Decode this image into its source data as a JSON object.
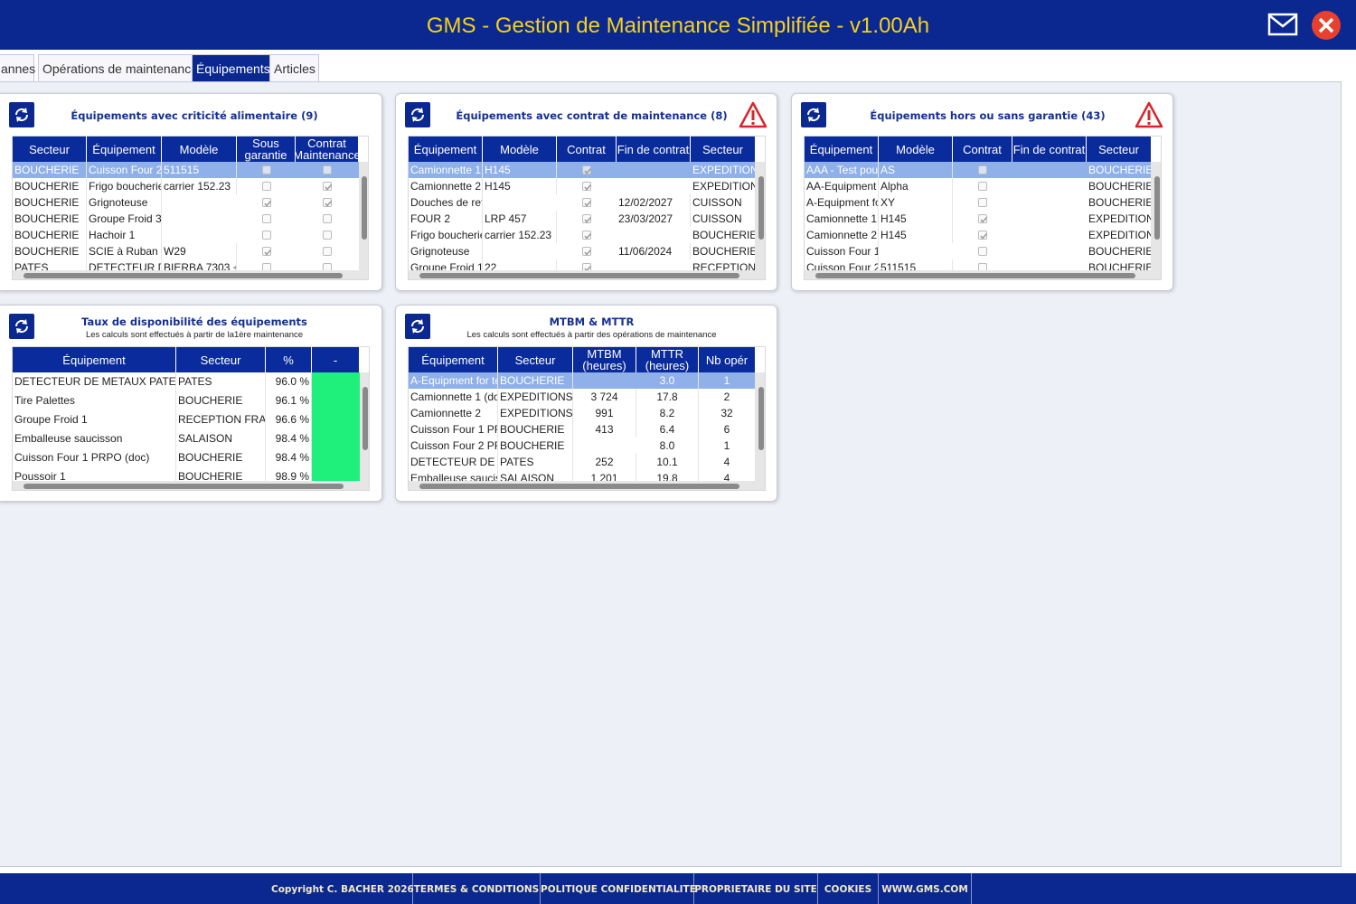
{
  "header": {
    "title": "GMS - Gestion de Maintenance Simplifiée - v1.00Ah"
  },
  "tabs": {
    "items": [
      "annes",
      "Opérations de maintenance",
      "Équipements",
      "Articles"
    ],
    "active": 2
  },
  "panels": [
    {
      "title": "Équipements avec criticité alimentaire (9)",
      "warning": false,
      "selected_row": 0,
      "columns": [
        "Secteur",
        "Équipement",
        "Modèle",
        "Sous garantie",
        "Contrat Maintenance"
      ],
      "rows": [
        [
          "BOUCHERIE",
          "Cuisson Four 2 I",
          "511515",
          false,
          false
        ],
        [
          "BOUCHERIE",
          "Frigo boucherie",
          "carrier 152.23",
          false,
          true
        ],
        [
          "BOUCHERIE",
          "Grignoteuse",
          null,
          true,
          true
        ],
        [
          "BOUCHERIE",
          "Groupe Froid 3",
          null,
          false,
          false
        ],
        [
          "BOUCHERIE",
          "Hachoir 1",
          null,
          false,
          false
        ],
        [
          "BOUCHERIE",
          "SCIE à Ruban",
          "W29",
          true,
          false
        ],
        [
          "PATES",
          "DETECTEUR DI",
          "BIERBA 7303 +",
          false,
          false
        ]
      ]
    },
    {
      "title": "Équipements avec contrat de maintenance (8)",
      "warning": true,
      "selected_row": 0,
      "columns": [
        "Équipement",
        "Modèle",
        "Contrat",
        "Fin de contrat",
        "Secteur"
      ],
      "rows": [
        [
          "Camionnette 1 (",
          "H145",
          true,
          null,
          "EXPEDITION"
        ],
        [
          "Camionnette 2",
          "H145",
          true,
          null,
          "EXPEDITION"
        ],
        [
          "Douches de refr",
          null,
          true,
          "12/02/2027",
          "CUISSON"
        ],
        [
          "FOUR 2",
          "LRP 457",
          true,
          "23/03/2027",
          "CUISSON"
        ],
        [
          "Frigo boucherie",
          "carrier 152.23",
          true,
          null,
          "BOUCHERIE"
        ],
        [
          "Grignoteuse",
          null,
          true,
          "11/06/2024",
          "BOUCHERIE"
        ],
        [
          "Groupe Froid 1",
          "22",
          true,
          null,
          "RECEPTION"
        ]
      ]
    },
    {
      "title": "Équipements hors ou sans garantie (43)",
      "warning": true,
      "selected_row": 0,
      "columns": [
        "Équipement",
        "Modèle",
        "Contrat",
        "Fin de contrat",
        "Secteur"
      ],
      "rows": [
        [
          "AAA - Test pour",
          "AS",
          false,
          null,
          "BOUCHERIE"
        ],
        [
          "AA-Equipment fo",
          "Alpha",
          false,
          null,
          "BOUCHERIE"
        ],
        [
          "A-Equipment for",
          "XY",
          false,
          null,
          "BOUCHERIE"
        ],
        [
          "Camionnette 1 (",
          "H145",
          true,
          null,
          "EXPEDITION"
        ],
        [
          "Camionnette 2",
          "H145",
          true,
          null,
          "EXPEDITION"
        ],
        [
          "Cuisson Four 1 F",
          null,
          false,
          null,
          "BOUCHERIE"
        ],
        [
          "Cuisson Four 2 I",
          "511515",
          false,
          null,
          "BOUCHERIE"
        ]
      ]
    },
    {
      "title": "Taux de disponibilité des équipements",
      "subtitle": "Les calculs sont effectués à partir de la1ère maintenance",
      "warning": false,
      "columns": [
        "Équipement",
        "Secteur",
        "%",
        "-"
      ],
      "rows": [
        [
          "DETECTEUR DE METAUX PATES C",
          "PATES",
          "96.0 %",
          null
        ],
        [
          "Tire Palettes",
          "BOUCHERIE",
          "96.1 %",
          null
        ],
        [
          "Groupe Froid 1",
          "RECEPTION FRAI",
          "96.6 %",
          null
        ],
        [
          "Emballeuse saucisson",
          "SALAISON",
          "98.4 %",
          null
        ],
        [
          "Cuisson Four 1 PRPO (doc)",
          "BOUCHERIE",
          "98.4 %",
          null
        ],
        [
          "Poussoir 1",
          "BOUCHERIE",
          "98.9 %",
          null
        ]
      ]
    },
    {
      "title": "MTBM & MTTR",
      "subtitle": "Les calculs sont effectués à partir des opérations de maintenance",
      "warning": false,
      "selected_row": 0,
      "columns": [
        "Équipement",
        "Secteur",
        "MTBM (heures)",
        "MTTR (heures)",
        "Nb opér"
      ],
      "rows": [
        [
          "A-Equipment for tes",
          "BOUCHERIE",
          null,
          "3.0",
          "1"
        ],
        [
          "Camionnette 1 (doc",
          "EXPEDITIONS E",
          "3 724",
          "17.8",
          "2"
        ],
        [
          "Camionnette 2",
          "EXPEDITIONS E",
          "991",
          "8.2",
          "32"
        ],
        [
          "Cuisson Four 1 PRF",
          "BOUCHERIE",
          "413",
          "6.4",
          "6"
        ],
        [
          "Cuisson Four 2 PRF",
          "BOUCHERIE",
          null,
          "8.0",
          "1"
        ],
        [
          "DETECTEUR DE M",
          "PATES",
          "252",
          "10.1",
          "4"
        ],
        [
          "Emballeuse saucis",
          "SALAISON",
          "1 201",
          "19.8",
          "4"
        ]
      ]
    }
  ],
  "footer": {
    "links": [
      "Copyright C. BACHER 2026",
      "TERMES & CONDITIONS",
      "POLITIQUE CONFIDENTIALITE",
      "PROPRIETAIRE DU SITE",
      "COOKIES",
      "WWW.GMS.COM"
    ]
  }
}
